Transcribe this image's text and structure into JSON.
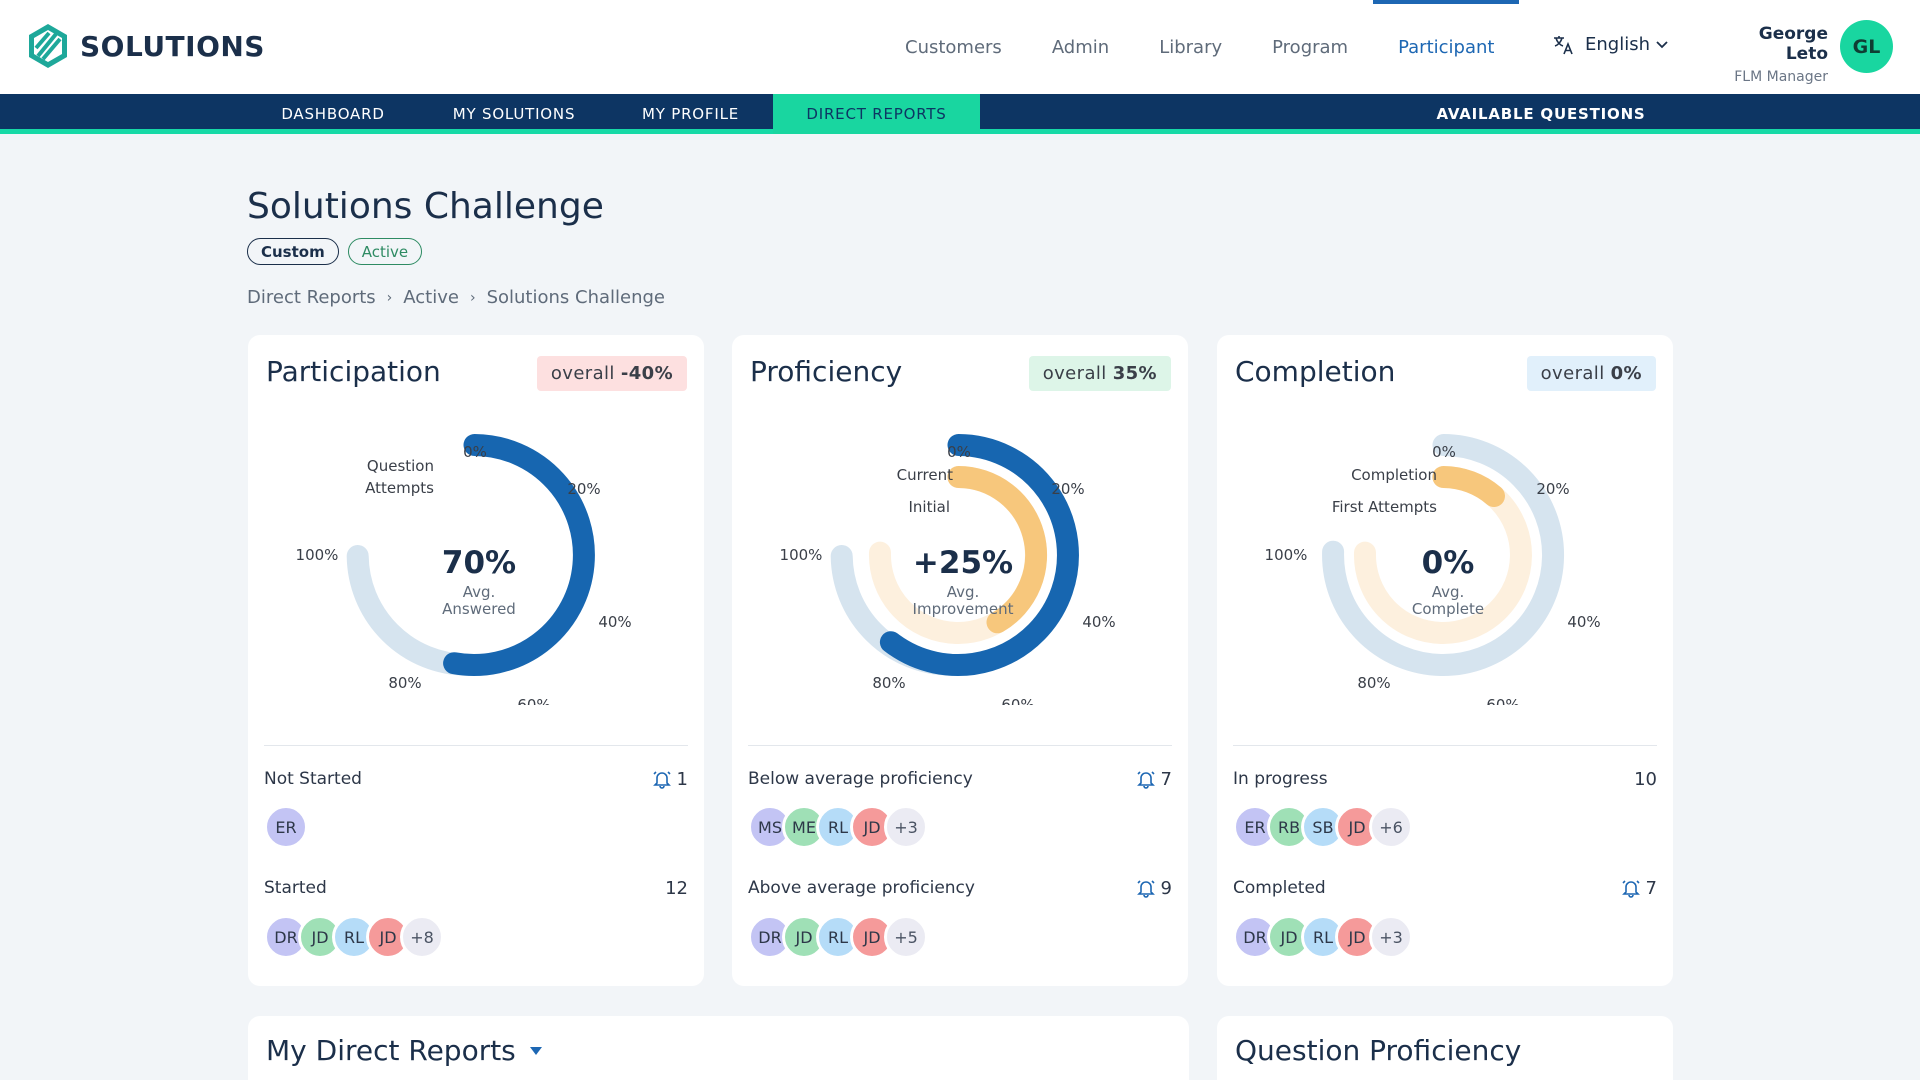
{
  "brand": {
    "name": "SOLUTIONS",
    "icon": "solutions-logo-icon"
  },
  "main_nav": [
    {
      "label": "Customers",
      "active": false
    },
    {
      "label": "Admin",
      "active": false
    },
    {
      "label": "Library",
      "active": false
    },
    {
      "label": "Program",
      "active": false
    },
    {
      "label": "Participant",
      "active": true
    }
  ],
  "language": {
    "label": "English",
    "icon": "translate-icon"
  },
  "user": {
    "name": "George Leto",
    "role": "FLM Manager",
    "initials": "GL"
  },
  "sub_nav": [
    {
      "label": "DASHBOARD",
      "active": false
    },
    {
      "label": "MY SOLUTIONS",
      "active": false
    },
    {
      "label": "MY PROFILE",
      "active": false
    },
    {
      "label": "DIRECT REPORTS",
      "active": true
    },
    {
      "label": "AVAILABLE QUESTIONS",
      "active": false
    }
  ],
  "page": {
    "title": "Solutions Challenge",
    "tags": [
      "Custom",
      "Active"
    ],
    "breadcrumb": [
      "Direct Reports",
      "Active",
      "Solutions Challenge"
    ]
  },
  "cards": {
    "participation": {
      "title": "Participation",
      "overall_label": "overall",
      "overall_value": "-40%",
      "gauge": {
        "center_value": "70%",
        "center_label_1": "Avg.",
        "center_label_2": "Answered",
        "ticks": [
          "0%",
          "20%",
          "40%",
          "60%",
          "80%",
          "100%"
        ],
        "outer_label_1": "Question",
        "outer_label_2": "Attempts",
        "outer_progress": 0.7
      },
      "row1": {
        "label": "Not Started",
        "count": "1",
        "bell": true
      },
      "row1_avatars": [
        "ER"
      ],
      "row2": {
        "label": "Started",
        "count": "12",
        "bell": false
      },
      "row2_avatars": [
        "DR",
        "JD",
        "RL",
        "JD",
        "+8"
      ]
    },
    "proficiency": {
      "title": "Proficiency",
      "overall_label": "overall",
      "overall_value": "35%",
      "gauge": {
        "center_value": "+25%",
        "center_label_1": "Avg.",
        "center_label_2": "Improvement",
        "ticks": [
          "0%",
          "20%",
          "40%",
          "60%",
          "80%",
          "100%"
        ],
        "outer_label": "Current",
        "inner_label": "Initial",
        "outer_progress": 0.8,
        "inner_progress": 0.55
      },
      "row1": {
        "label": "Below average proficiency",
        "count": "7",
        "bell": true
      },
      "row1_avatars": [
        "MS",
        "ME",
        "RL",
        "JD",
        "+3"
      ],
      "row2": {
        "label": "Above average proficiency",
        "count": "9",
        "bell": true
      },
      "row2_avatars": [
        "DR",
        "JD",
        "RL",
        "JD",
        "+5"
      ]
    },
    "completion": {
      "title": "Completion",
      "overall_label": "overall",
      "overall_value": "0%",
      "gauge": {
        "center_value": "0%",
        "center_label_1": "Avg.",
        "center_label_2": "Complete",
        "ticks": [
          "0%",
          "20%",
          "40%",
          "60%",
          "80%",
          "100%"
        ],
        "outer_label": "Completion",
        "inner_label": "First Attempts",
        "outer_progress": 0.0,
        "inner_progress": 0.15
      },
      "row1": {
        "label": "In progress",
        "count": "10",
        "bell": false
      },
      "row1_avatars": [
        "ER",
        "RB",
        "SB",
        "JD",
        "+6"
      ],
      "row2": {
        "label": "Completed",
        "count": "7",
        "bell": true
      },
      "row2_avatars": [
        "DR",
        "JD",
        "RL",
        "JD",
        "+3"
      ]
    }
  },
  "bottom": {
    "direct_reports_title": "My Direct Reports",
    "question_proficiency_title": "Question Proficiency"
  },
  "colors": {
    "navy": "#0d3563",
    "teal": "#19d6a0",
    "blue": "#1d67b3",
    "track": "#d6e4ef",
    "orange": "#f7c77c",
    "orange_track": "#fdf0de"
  }
}
